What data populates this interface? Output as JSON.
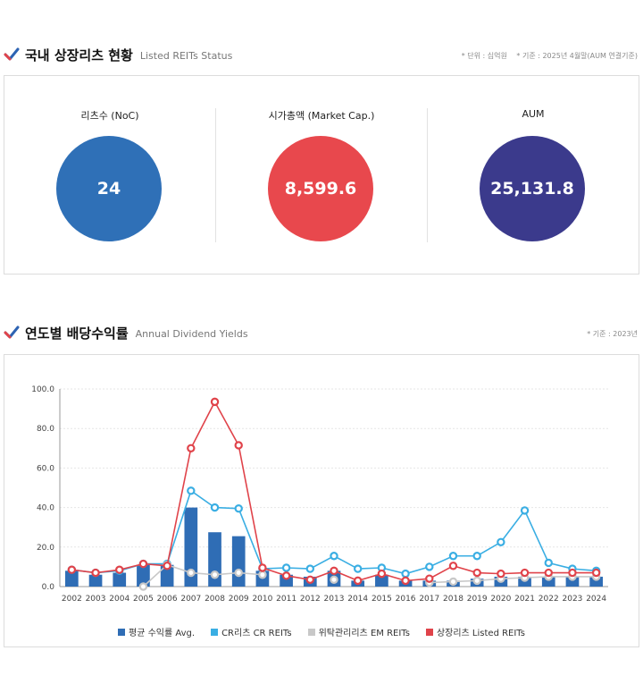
{
  "status": {
    "title": "국내 상장리츠 현황",
    "subtitle": "Listed REITs Status",
    "note": "* 단위 : 십억원 　* 기준 : 2025년 4월말(AUM 연결기준)",
    "stats": [
      {
        "label": "리츠수 (NoC)",
        "value": "24",
        "color": "#2f70b7"
      },
      {
        "label": "시가총액 (Market Cap.)",
        "value": "8,599.6",
        "color": "#e8484d"
      },
      {
        "label": "AUM",
        "value": "25,131.8",
        "color": "#3b3a8c"
      }
    ]
  },
  "dividend": {
    "title": "연도별 배당수익률",
    "subtitle": "Annual Dividend Yields",
    "note": "* 기준 : 2023년"
  },
  "chart_data": {
    "type": "bar",
    "categories": [
      "2002",
      "2003",
      "2004",
      "2005",
      "2006",
      "2007",
      "2008",
      "2009",
      "2010",
      "2011",
      "2012",
      "2013",
      "2014",
      "2015",
      "2016",
      "2017",
      "2018",
      "2019",
      "2020",
      "2021",
      "2022",
      "2023",
      "2024"
    ],
    "ylim": [
      0,
      100
    ],
    "yticks": [
      "0.0",
      "20.0",
      "40.0",
      "60.0",
      "80.0",
      "100.0"
    ],
    "grid": true,
    "legend_position": "bottom",
    "series": [
      {
        "name": "평균 수익률 Avg.",
        "kind": "bar",
        "color": "#2f6db5",
        "values": [
          8,
          6,
          7,
          11,
          11,
          40,
          27.5,
          25.5,
          8,
          6,
          5,
          8,
          3,
          6,
          3,
          3,
          3,
          4,
          5,
          5,
          5,
          5,
          5
        ]
      },
      {
        "name": "CR리츠 CR REITs",
        "kind": "line",
        "color": "#3aaee3",
        "values": [
          8.5,
          7,
          8,
          11.5,
          11.5,
          48.5,
          40,
          39.5,
          9,
          9.5,
          9,
          15.5,
          9,
          9.5,
          6.5,
          10,
          15.5,
          15.5,
          22.5,
          38.5,
          12,
          9,
          8
        ]
      },
      {
        "name": "위탁관리리츠 EM REITs",
        "kind": "line",
        "color": "#c8c8c8",
        "values": [
          null,
          null,
          null,
          0,
          11,
          7,
          6,
          7,
          6,
          null,
          null,
          3.5,
          null,
          null,
          null,
          2,
          2.5,
          3,
          4,
          4.5,
          5,
          5,
          5
        ]
      },
      {
        "name": "상장리츠 Listed REITs",
        "kind": "line",
        "color": "#e0434a",
        "values": [
          8.5,
          7,
          8.5,
          11.5,
          10.5,
          70,
          93.5,
          71.5,
          9.5,
          5.5,
          3.5,
          8,
          3,
          6.5,
          3,
          4,
          10.5,
          7,
          6.5,
          7,
          7,
          7,
          7
        ]
      }
    ]
  }
}
